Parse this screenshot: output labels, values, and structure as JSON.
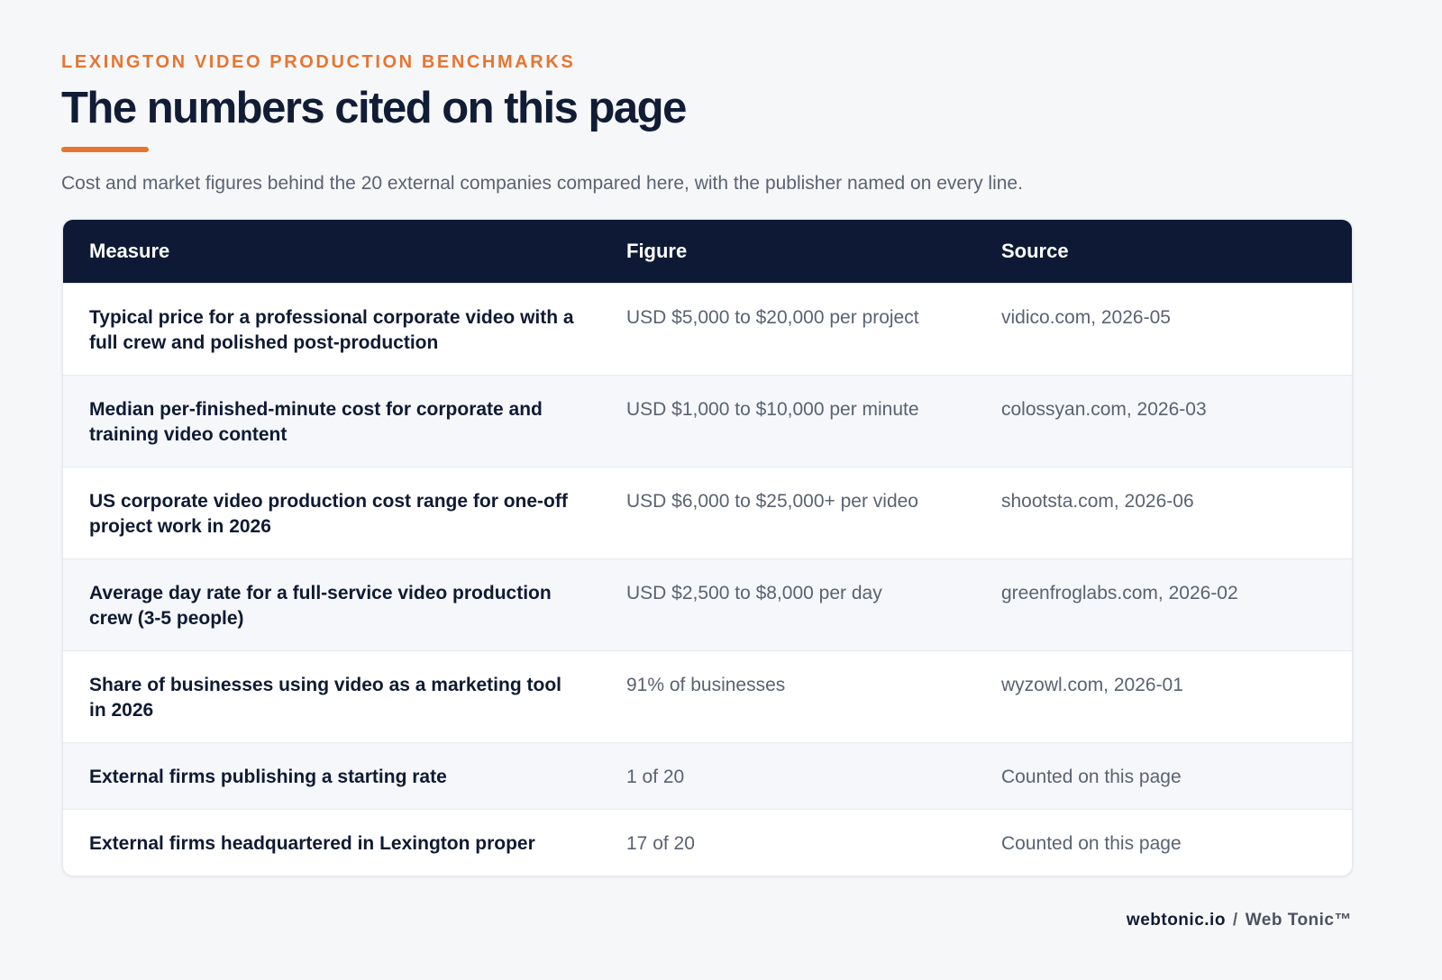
{
  "header": {
    "eyebrow": "LEXINGTON VIDEO PRODUCTION BENCHMARKS",
    "title": "The numbers cited on this page",
    "subtitle": "Cost and market figures behind the 20 external companies compared here, with the publisher named on every line."
  },
  "table": {
    "columns": [
      "Measure",
      "Figure",
      "Source"
    ],
    "rows": [
      [
        "Typical price for a professional corporate video with a full crew and polished post-production",
        "USD $5,000 to $20,000 per project",
        "vidico.com, 2026-05"
      ],
      [
        "Median per-finished-minute cost for corporate and training video content",
        "USD $1,000 to $10,000 per minute",
        "colossyan.com, 2026-03"
      ],
      [
        "US corporate video production cost range for one-off project work in 2026",
        "USD $6,000 to $25,000+ per video",
        "shootsta.com, 2026-06"
      ],
      [
        "Average day rate for a full-service video production crew (3-5 people)",
        "USD $2,500 to $8,000 per day",
        "greenfroglabs.com, 2026-02"
      ],
      [
        "Share of businesses using video as a marketing tool in 2026",
        "91% of businesses",
        "wyzowl.com, 2026-01"
      ],
      [
        "External firms publishing a starting rate",
        "1 of 20",
        "Counted on this page"
      ],
      [
        "External firms headquartered in Lexington proper",
        "17 of 20",
        "Counted on this page"
      ]
    ]
  },
  "footer": {
    "site": "webtonic.io",
    "separator": "/",
    "brand": "Web Tonic™"
  }
}
